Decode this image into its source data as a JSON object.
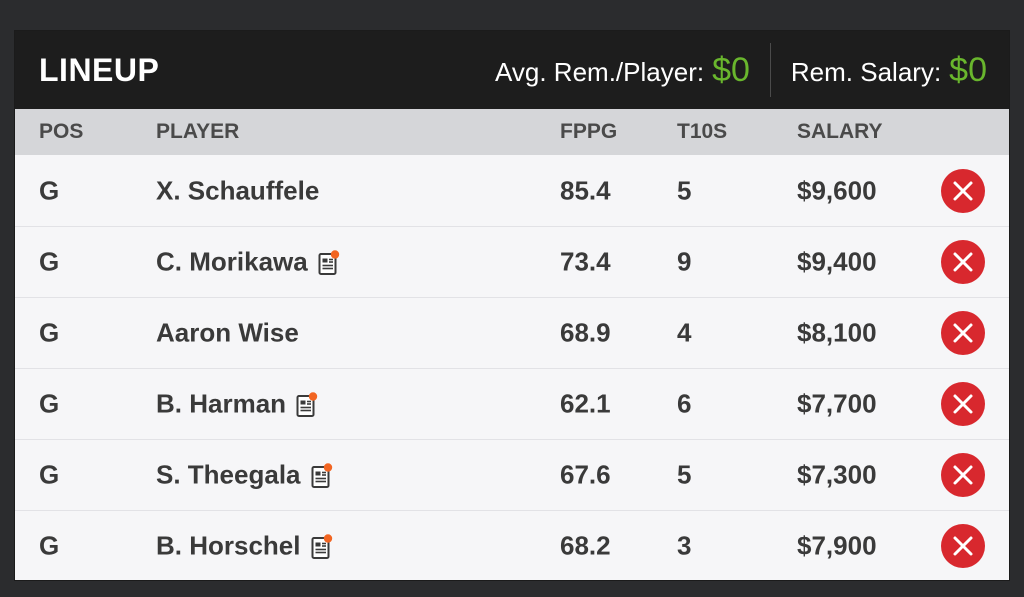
{
  "header": {
    "title": "LINEUP",
    "avg_label": "Avg. Rem./Player:",
    "avg_value": "$0",
    "rem_label": "Rem. Salary:",
    "rem_value": "$0"
  },
  "columns": {
    "pos": "POS",
    "player": "PLAYER",
    "fppg": "FPPG",
    "t10s": "T10S",
    "salary": "SALARY"
  },
  "rows": [
    {
      "pos": "G",
      "player": "X. Schauffele",
      "news": false,
      "fppg": "85.4",
      "t10s": "5",
      "salary": "$9,600"
    },
    {
      "pos": "G",
      "player": "C. Morikawa",
      "news": true,
      "fppg": "73.4",
      "t10s": "9",
      "salary": "$9,400"
    },
    {
      "pos": "G",
      "player": "Aaron Wise",
      "news": false,
      "fppg": "68.9",
      "t10s": "4",
      "salary": "$8,100"
    },
    {
      "pos": "G",
      "player": "B. Harman",
      "news": true,
      "fppg": "62.1",
      "t10s": "6",
      "salary": "$7,700"
    },
    {
      "pos": "G",
      "player": "S. Theegala",
      "news": true,
      "fppg": "67.6",
      "t10s": "5",
      "salary": "$7,300"
    },
    {
      "pos": "G",
      "player": "B. Horschel",
      "news": true,
      "fppg": "68.2",
      "t10s": "3",
      "salary": "$7,900"
    }
  ],
  "icons": {
    "news": "news-icon",
    "remove": "close-icon"
  },
  "colors": {
    "accent_green": "#69b62d",
    "remove_red": "#d8282e",
    "news_dot": "#f26522"
  }
}
